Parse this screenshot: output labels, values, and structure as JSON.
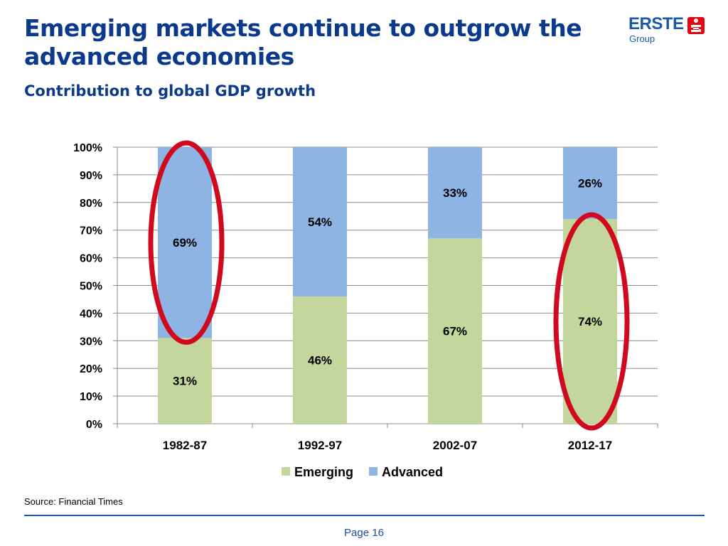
{
  "slide": {
    "title": "Emerging markets continue to outgrow the advanced economies",
    "subtitle": "Contribution to global GDP growth",
    "source": "Source: Financial Times",
    "page": "Page 16"
  },
  "logo": {
    "name": "ERSTE",
    "sub": "Group",
    "icon": "erste-s-icon",
    "color": "#1a5aa6",
    "mark_color": "#e30613"
  },
  "chart_data": {
    "type": "bar",
    "stacked": true,
    "categories": [
      "1982-87",
      "1992-97",
      "2002-07",
      "2012-17"
    ],
    "series": [
      {
        "name": "Emerging",
        "values": [
          31,
          46,
          67,
          74
        ],
        "color": "#c3d69b",
        "labels": [
          "31%",
          "46%",
          "67%",
          "74%"
        ]
      },
      {
        "name": "Advanced",
        "values": [
          69,
          54,
          33,
          26
        ],
        "color": "#8eb4e3",
        "labels": [
          "69%",
          "54%",
          "33%",
          "26%"
        ]
      }
    ],
    "yticks": [
      "0%",
      "10%",
      "20%",
      "30%",
      "40%",
      "50%",
      "60%",
      "70%",
      "80%",
      "90%",
      "100%"
    ],
    "ylim": [
      0,
      100
    ],
    "grid": true,
    "legend": "bottom",
    "highlights": [
      {
        "category": "1982-87",
        "series": "Advanced",
        "color": "#d0091e"
      },
      {
        "category": "2012-17",
        "series": "Emerging",
        "color": "#d0091e"
      }
    ]
  }
}
